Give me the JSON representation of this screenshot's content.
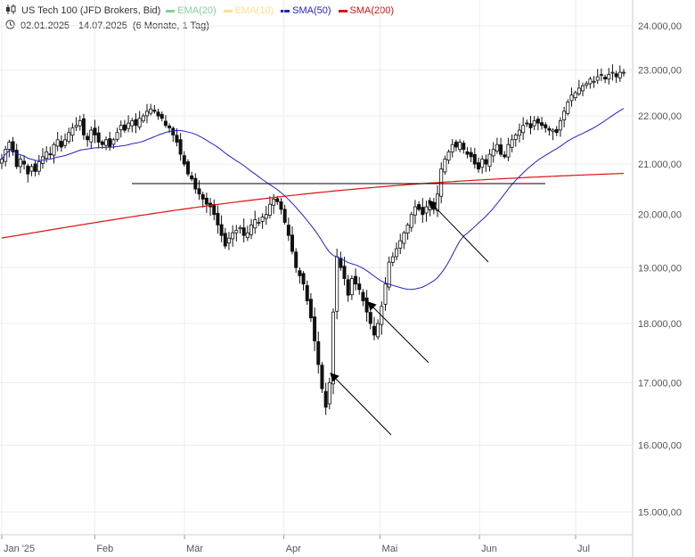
{
  "header": {
    "title": "US Tech 100 (JFD Brokers, Bid)",
    "range": "02.01.2025 - 14.07.2025",
    "period": "(6 Monate, 1 Tag)",
    "indicators": [
      {
        "label": "EMA(20)",
        "color": "#7fd39a",
        "faded": true
      },
      {
        "label": "EMA(10)",
        "color": "#ffe08a",
        "faded": true
      },
      {
        "label": "SMA(50)",
        "color": "#2222cc",
        "faded": false
      },
      {
        "label": "SMA(200)",
        "color": "#dd1111",
        "faded": false
      }
    ]
  },
  "chart_data": {
    "type": "candlestick",
    "ylim": [
      14700,
      24400
    ],
    "y_ticks": [
      "15.000,00",
      "16.000,00",
      "17.000,00",
      "18.000,00",
      "19.000,00",
      "20.000,00",
      "21.000,00",
      "22.000,00",
      "23.000,00",
      "24.000,00"
    ],
    "y_tick_values": [
      15000,
      16000,
      17000,
      18000,
      19000,
      20000,
      21000,
      22000,
      23000,
      24000
    ],
    "x_range_days": [
      0,
      194
    ],
    "x_ticks": [
      {
        "label": "Jan '25",
        "day": 0
      },
      {
        "label": "Feb",
        "day": 29
      },
      {
        "label": "Mär",
        "day": 57
      },
      {
        "label": "Apr",
        "day": 88
      },
      {
        "label": "Mai",
        "day": 118
      },
      {
        "label": "Jun",
        "day": 149
      },
      {
        "label": "Jul",
        "day": 179
      }
    ],
    "close": [
      21100,
      21300,
      21450,
      21250,
      20950,
      21100,
      21000,
      20800,
      20950,
      20850,
      21050,
      21150,
      21250,
      21200,
      21400,
      21500,
      21350,
      21500,
      21650,
      21750,
      21800,
      21900,
      21600,
      21500,
      21700,
      21600,
      21450,
      21400,
      21500,
      21350,
      21500,
      21650,
      21800,
      21700,
      21850,
      21900,
      21800,
      21950,
      22000,
      22100,
      22150,
      22100,
      22000,
      21950,
      21800,
      21750,
      21600,
      21450,
      21200,
      21000,
      20800,
      20700,
      20500,
      20400,
      20300,
      20200,
      20150,
      20000,
      19800,
      19600,
      19400,
      19550,
      19650,
      19700,
      19750,
      19600,
      19650,
      19800,
      19900,
      19850,
      19950,
      20000,
      20200,
      20300,
      20250,
      20100,
      19850,
      19600,
      19300,
      19000,
      18850,
      18700,
      18400,
      18100,
      17700,
      17300,
      16900,
      16600,
      17000,
      18200,
      19200,
      19000,
      18800,
      18500,
      18800,
      18700,
      18600,
      18400,
      18200,
      18000,
      17800,
      18000,
      18300,
      18700,
      19100,
      19200,
      19350,
      19500,
      19650,
      19800,
      20000,
      20150,
      20100,
      20000,
      20150,
      20250,
      20100,
      20400,
      20900,
      21100,
      21250,
      21400,
      21350,
      21450,
      21300,
      21200,
      21150,
      21000,
      20900,
      21100,
      21000,
      21200,
      21300,
      21400,
      21200,
      21150,
      21400,
      21500,
      21600,
      21700,
      21800,
      21850,
      21750,
      21900,
      21850,
      21800,
      21750,
      21700,
      21700,
      21650,
      21900,
      22100,
      22300,
      22450,
      22500,
      22600,
      22650,
      22700,
      22800,
      22750,
      22850,
      22900,
      22800,
      22900,
      22950,
      22850,
      22950,
      22950
    ]
  }
}
